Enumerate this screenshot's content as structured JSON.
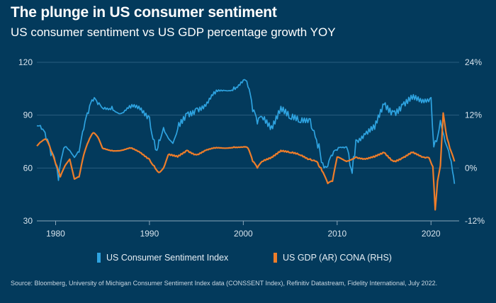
{
  "title": "The plunge in US consumer sentiment",
  "subtitle": "US consumer sentiment vs US GDP percentage growth YOY",
  "source": "Source: Bloomberg, University of Michigan Consumer Sentiment Index data (CONSSENT Index), Refinitiv Datastream, Fidelity International, July 2022.",
  "colors": {
    "background": "#033a5c",
    "sentiment": "#2ea3e0",
    "gdp": "#ee7d2a"
  },
  "chart_data": {
    "type": "line",
    "title": "The plunge in US consumer sentiment",
    "xlim": [
      1978,
      2023
    ],
    "x_ticks": [
      1980,
      1990,
      2000,
      2010,
      2020
    ],
    "left_axis": {
      "ylim": [
        30,
        120
      ],
      "ticks": [
        30,
        60,
        90,
        120
      ]
    },
    "right_axis": {
      "ylim": [
        -12,
        24
      ],
      "ticks": [
        -12,
        0,
        12,
        24
      ],
      "tick_labels": [
        "-12%",
        "0%",
        "12%",
        "24%"
      ]
    },
    "series": [
      {
        "name": "US Consumer Sentiment Index",
        "axis": "left",
        "x": [
          1978,
          1978.5,
          1979,
          1979.5,
          1980,
          1980.3,
          1980.6,
          1981,
          1981.5,
          1982,
          1982.5,
          1983,
          1983.5,
          1984,
          1984.5,
          1985,
          1986,
          1987,
          1988,
          1989,
          1990,
          1990.5,
          1990.8,
          1991,
          1991.5,
          1992,
          1992.5,
          1993,
          1994,
          1995,
          1996,
          1997,
          1998,
          1999,
          2000,
          2000.5,
          2001,
          2001.5,
          2002,
          2003,
          2004,
          2005,
          2006,
          2007,
          2007.8,
          2008.2,
          2008.6,
          2009,
          2009.5,
          2010,
          2011,
          2011.6,
          2012,
          2013,
          2014,
          2015,
          2016,
          2017,
          2018,
          2019,
          2020,
          2020.3,
          2020.6,
          2021,
          2021.5,
          2022,
          2022.3,
          2022.5
        ],
        "values": [
          84,
          82,
          76,
          67,
          62,
          53,
          65,
          72,
          70,
          66,
          69,
          82,
          91,
          98,
          96,
          94,
          95,
          91,
          94,
          93,
          89,
          76,
          70,
          76,
          83,
          77,
          74,
          82,
          91,
          94,
          95,
          102,
          104,
          106,
          110,
          106,
          92,
          85,
          89,
          84,
          95,
          88,
          86,
          88,
          76,
          68,
          60,
          61,
          67,
          70,
          72,
          57,
          76,
          79,
          82,
          96,
          92,
          96,
          99,
          97,
          100,
          72,
          75,
          87,
          75,
          66,
          58,
          51
        ]
      },
      {
        "name": "US GDP (AR) CONA (RHS)",
        "axis": "right",
        "x": [
          1978,
          1978.5,
          1979,
          1979.5,
          1980,
          1980.5,
          1981,
          1981.5,
          1982,
          1982.5,
          1983,
          1983.5,
          1984,
          1984.5,
          1985,
          1986,
          1987,
          1988,
          1989,
          1990,
          1990.5,
          1991,
          1991.5,
          1992,
          1993,
          1994,
          1995,
          1996,
          1997,
          1998,
          1999,
          2000,
          2000.5,
          2001,
          2001.5,
          2002,
          2003,
          2004,
          2005,
          2006,
          2007,
          2007.8,
          2008.5,
          2009,
          2009.5,
          2010,
          2011,
          2012,
          2013,
          2014,
          2015,
          2016,
          2017,
          2018,
          2019,
          2019.8,
          2020.2,
          2020.45,
          2020.7,
          2021,
          2021.3,
          2021.6,
          2022,
          2022.5
        ],
        "values": [
          5,
          6,
          6.5,
          4,
          1,
          -2,
          0.5,
          2,
          -2.5,
          -2,
          3,
          6,
          8,
          7,
          4.5,
          4,
          4,
          4.5,
          3.5,
          2,
          0.5,
          -1,
          0,
          3,
          2.5,
          4,
          3,
          4,
          4.5,
          4.5,
          4.8,
          4.8,
          4.5,
          1.5,
          0,
          1.5,
          2.5,
          4,
          3.5,
          3,
          2,
          1.5,
          -1,
          -3.5,
          -3,
          2.5,
          1.5,
          2.5,
          2,
          2.5,
          3.5,
          1.5,
          2.3,
          3.5,
          2.5,
          2.3,
          0.3,
          -9.5,
          -3,
          0.5,
          12.5,
          8,
          4.5,
          1.5
        ]
      }
    ]
  }
}
